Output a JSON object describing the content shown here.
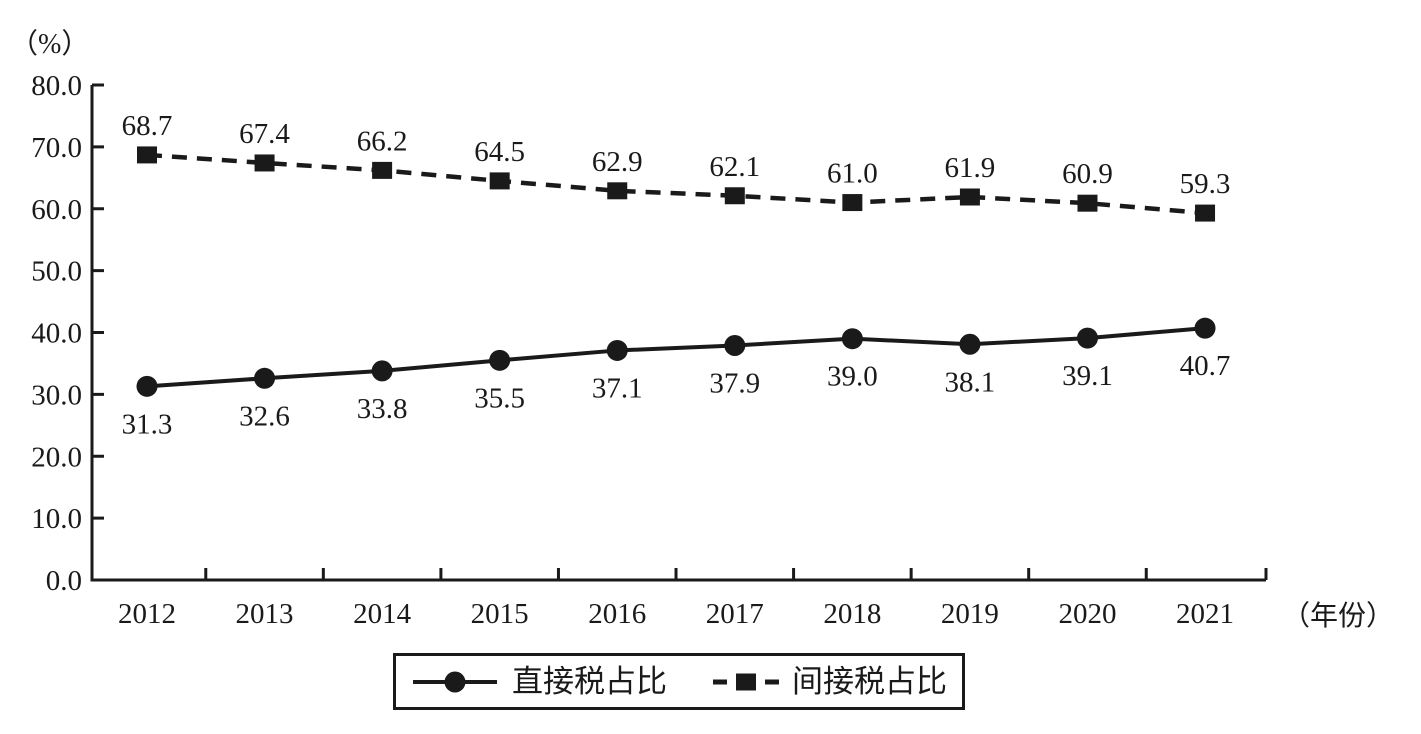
{
  "page": {
    "background": "#ffffff",
    "ink": "#1a1a1a"
  },
  "chart_data": {
    "type": "line",
    "title": "",
    "ylabel": "（%）",
    "xlabel": "（年份）",
    "categories": [
      "2012",
      "2013",
      "2014",
      "2015",
      "2016",
      "2017",
      "2018",
      "2019",
      "2020",
      "2021"
    ],
    "y_tick_labels": [
      "0.0",
      "10.0",
      "20.0",
      "30.0",
      "40.0",
      "50.0",
      "60.0",
      "70.0",
      "80.0"
    ],
    "ylim": [
      0,
      80
    ],
    "grid": false,
    "legend_position": "bottom-center-boxed",
    "series": [
      {
        "name": "直接税占比",
        "marker": "circle",
        "line_style": "solid",
        "label_position": "below",
        "values": [
          31.3,
          32.6,
          33.8,
          35.5,
          37.1,
          37.9,
          39.0,
          38.1,
          39.1,
          40.7
        ],
        "labels": [
          "31.3",
          "32.6",
          "33.8",
          "35.5",
          "37.1",
          "37.9",
          "39.0",
          "38.1",
          "39.1",
          "40.7"
        ]
      },
      {
        "name": "间接税占比",
        "marker": "square",
        "line_style": "dashed",
        "label_position": "above",
        "values": [
          68.7,
          67.4,
          66.2,
          64.5,
          62.9,
          62.1,
          61.0,
          61.9,
          60.9,
          59.3
        ],
        "labels": [
          "68.7",
          "67.4",
          "66.2",
          "64.5",
          "62.9",
          "62.1",
          "61.0",
          "61.9",
          "60.9",
          "59.3"
        ]
      }
    ]
  }
}
